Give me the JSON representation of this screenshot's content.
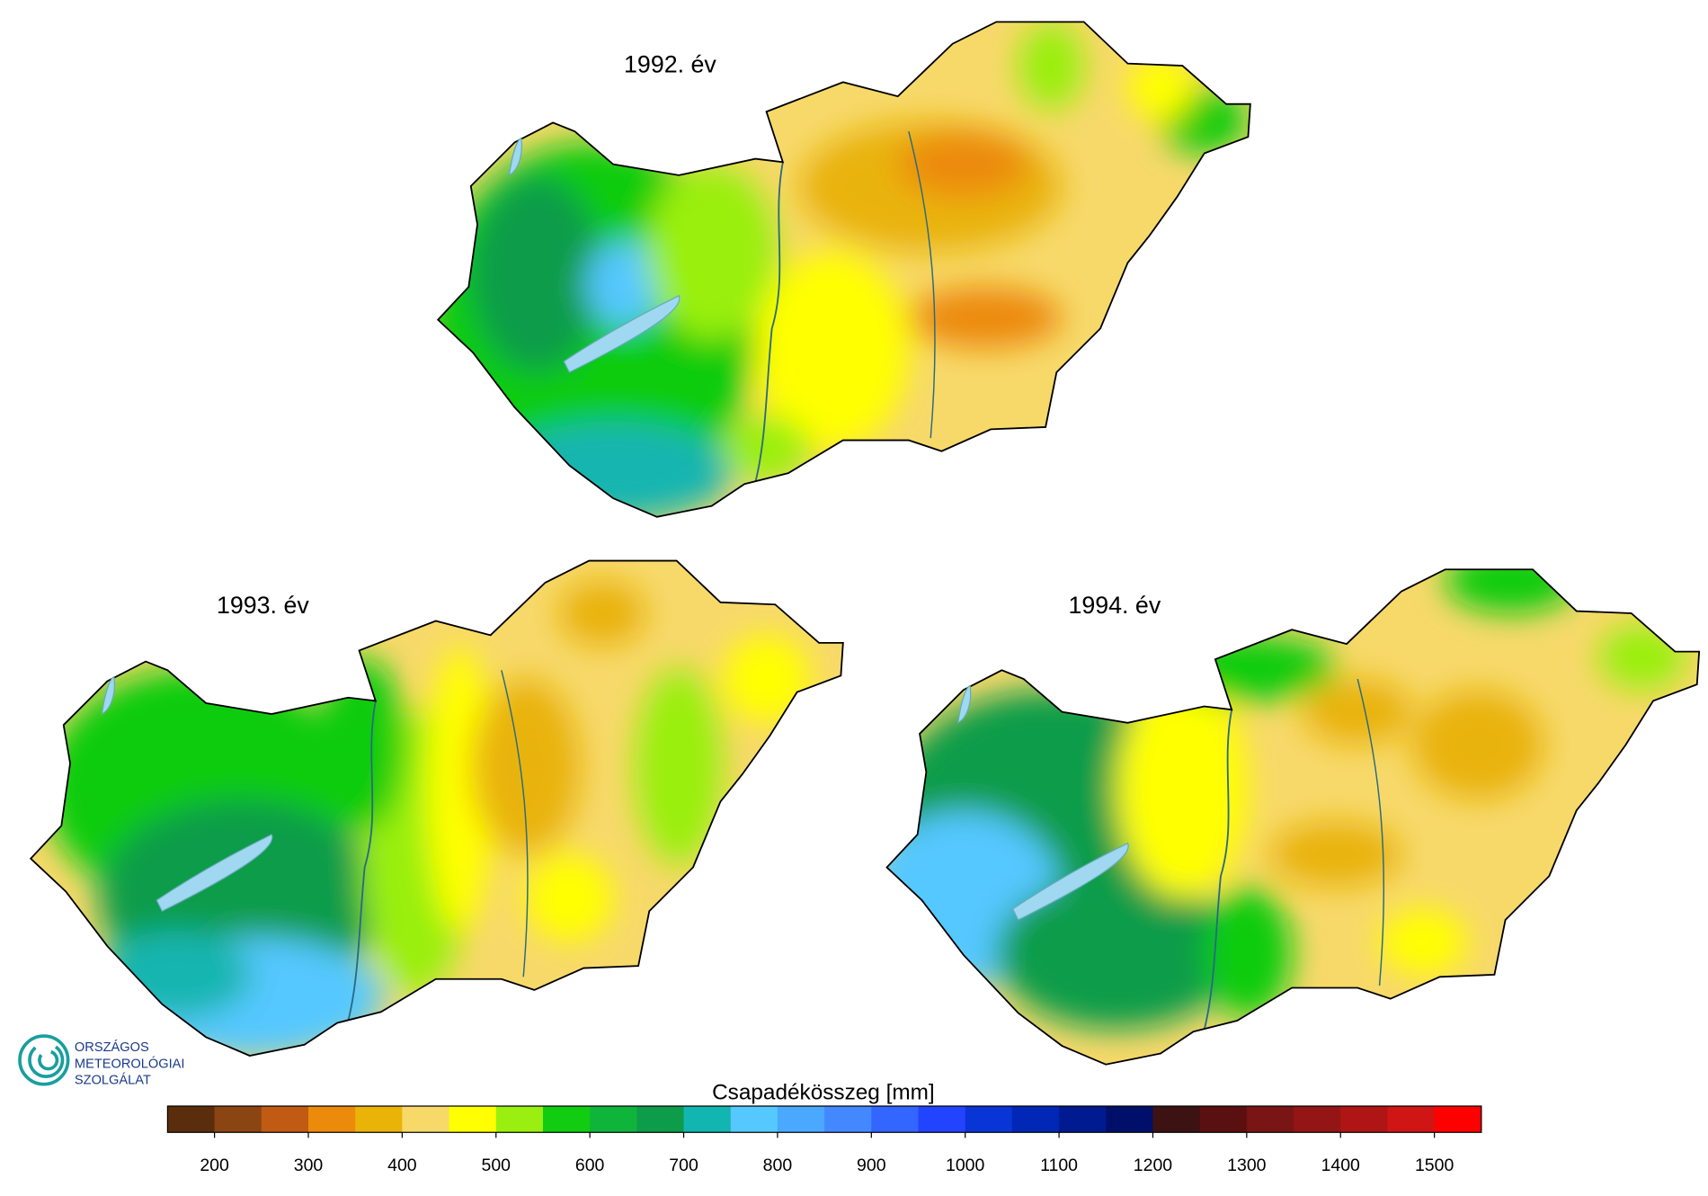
{
  "maps": [
    {
      "title": "1992. év"
    },
    {
      "title": "1993. év"
    },
    {
      "title": "1994. év"
    }
  ],
  "logo": {
    "lines": [
      "ORSZÁGOS",
      "METEOROLÓGIAI",
      "SZOLGÁLAT"
    ]
  },
  "colorbar": {
    "title": "Csapadékösszeg [mm]",
    "lim": [
      150,
      1550
    ],
    "colors": [
      "#5a2d0c",
      "#8b4513",
      "#c15a12",
      "#ec8a0c",
      "#e9b308",
      "#f7d96a",
      "#ffff00",
      "#9aef10",
      "#11cc11",
      "#0fb53a",
      "#0d9c4a",
      "#12b5b0",
      "#55c8ff",
      "#4aa8ff",
      "#4488ff",
      "#3366ff",
      "#2244ff",
      "#0a35d6",
      "#0027b5",
      "#001a8f",
      "#00106a",
      "#3d1212",
      "#5a1010",
      "#7a1515",
      "#941515",
      "#b01515",
      "#d01515",
      "#ff0000"
    ],
    "ticks": [
      200,
      300,
      400,
      500,
      600,
      700,
      800,
      900,
      1000,
      1100,
      1200,
      1300,
      1400,
      1500
    ]
  }
}
